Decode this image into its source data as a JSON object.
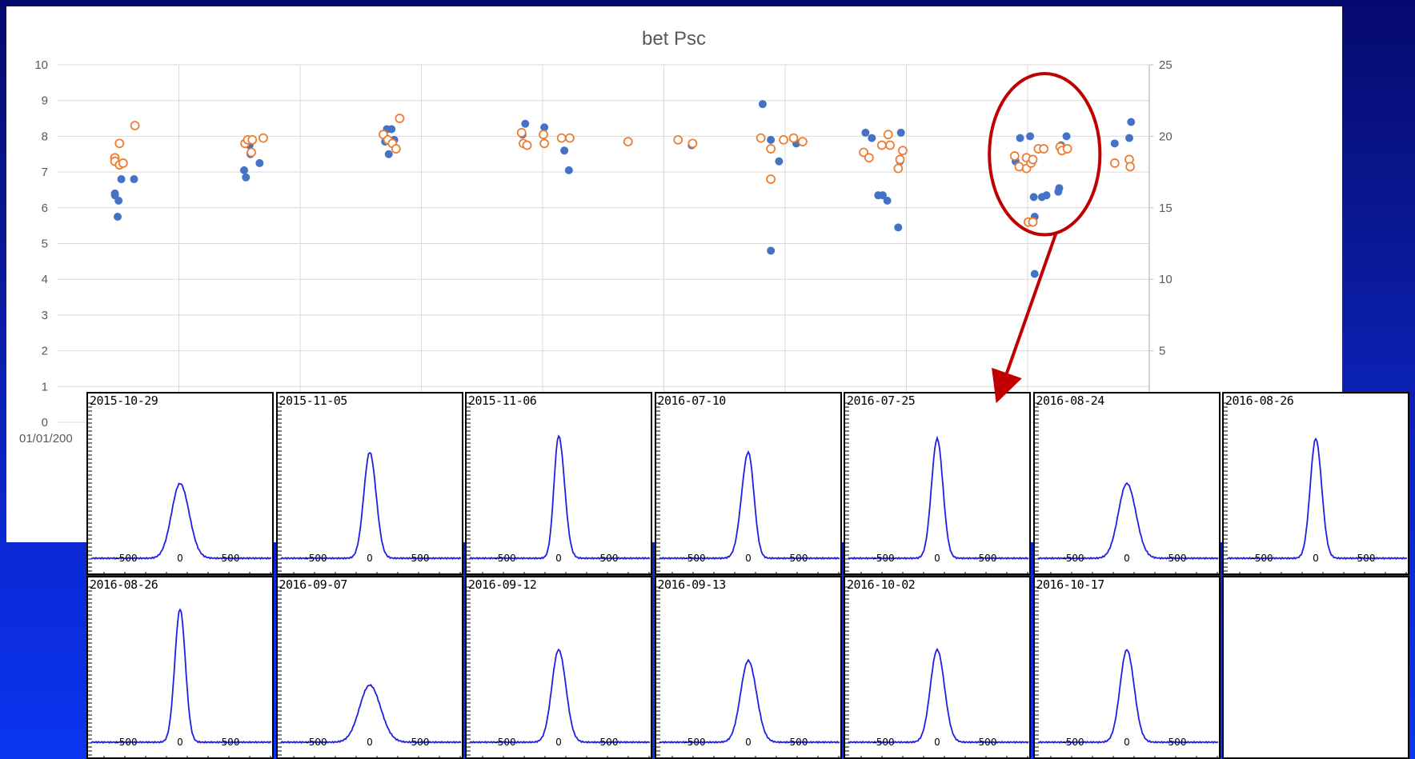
{
  "chart_data": [
    {
      "type": "scatter",
      "title": "bet Psc",
      "y_left": {
        "ticks": [
          "0",
          "1",
          "2",
          "3",
          "4",
          "5",
          "6",
          "7",
          "8",
          "9",
          "10"
        ],
        "ylim": [
          0,
          10
        ]
      },
      "y_right": {
        "ticks": [
          "5",
          "10",
          "15",
          "20",
          "25"
        ],
        "ylim": [
          0,
          25
        ]
      },
      "x_first_tick_label": "01/01/200",
      "grid": true,
      "series": [
        {
          "color": "#4472c4",
          "marker": "filled-circle",
          "axis": "left",
          "points": [
            [
              0.63,
              6.4
            ],
            [
              0.63,
              6.35
            ],
            [
              0.67,
              6.2
            ],
            [
              0.66,
              5.75
            ],
            [
              0.7,
              6.8
            ],
            [
              0.84,
              6.8
            ],
            [
              2.05,
              7.05
            ],
            [
              2.07,
              6.85
            ],
            [
              2.11,
              7.75
            ],
            [
              2.12,
              7.5
            ],
            [
              2.22,
              7.25
            ],
            [
              3.6,
              7.85
            ],
            [
              3.62,
              8.2
            ],
            [
              3.64,
              7.5
            ],
            [
              3.67,
              8.2
            ],
            [
              3.7,
              7.9
            ],
            [
              5.11,
              8.05
            ],
            [
              5.14,
              8.35
            ],
            [
              5.35,
              8.25
            ],
            [
              5.57,
              7.6
            ],
            [
              5.62,
              7.05
            ],
            [
              6.27,
              7.85
            ],
            [
              6.82,
              7.9
            ],
            [
              6.97,
              7.75
            ],
            [
              7.75,
              8.9
            ],
            [
              7.84,
              7.9
            ],
            [
              7.84,
              4.8
            ],
            [
              7.93,
              7.3
            ],
            [
              8.12,
              7.8
            ],
            [
              8.88,
              8.1
            ],
            [
              8.95,
              7.95
            ],
            [
              9.02,
              6.35
            ],
            [
              9.07,
              6.35
            ],
            [
              9.12,
              6.2
            ],
            [
              9.26,
              7.3
            ],
            [
              9.24,
              5.45
            ],
            [
              9.27,
              8.1
            ],
            [
              10.53,
              7.3
            ],
            [
              10.58,
              7.95
            ],
            [
              10.68,
              5.6
            ],
            [
              10.69,
              8.0
            ],
            [
              10.73,
              6.3
            ],
            [
              10.74,
              5.75
            ],
            [
              10.74,
              4.15
            ],
            [
              10.82,
              6.3
            ],
            [
              10.87,
              6.35
            ],
            [
              11.0,
              6.45
            ],
            [
              11.01,
              6.55
            ],
            [
              11.03,
              7.75
            ],
            [
              11.09,
              8.0
            ],
            [
              11.62,
              7.8
            ],
            [
              11.78,
              7.95
            ],
            [
              11.8,
              8.4
            ]
          ]
        },
        {
          "color": "#ed7d31",
          "marker": "open-circle",
          "axis": "left",
          "points": [
            [
              0.63,
              7.4
            ],
            [
              0.63,
              7.3
            ],
            [
              0.68,
              7.2
            ],
            [
              0.72,
              7.25
            ],
            [
              0.68,
              7.8
            ],
            [
              0.85,
              8.3
            ],
            [
              2.06,
              7.8
            ],
            [
              2.09,
              7.9
            ],
            [
              2.14,
              7.9
            ],
            [
              2.13,
              7.55
            ],
            [
              2.26,
              7.95
            ],
            [
              3.58,
              8.05
            ],
            [
              3.63,
              7.9
            ],
            [
              3.68,
              7.8
            ],
            [
              3.72,
              7.65
            ],
            [
              3.76,
              8.5
            ],
            [
              5.1,
              8.1
            ],
            [
              5.12,
              7.8
            ],
            [
              5.16,
              7.75
            ],
            [
              5.34,
              8.05
            ],
            [
              5.35,
              7.8
            ],
            [
              5.54,
              7.95
            ],
            [
              5.63,
              7.95
            ],
            [
              6.27,
              7.85
            ],
            [
              6.82,
              7.9
            ],
            [
              6.98,
              7.8
            ],
            [
              7.73,
              7.95
            ],
            [
              7.84,
              7.65
            ],
            [
              7.84,
              6.8
            ],
            [
              7.98,
              7.9
            ],
            [
              8.09,
              7.95
            ],
            [
              8.19,
              7.85
            ],
            [
              8.86,
              7.55
            ],
            [
              8.92,
              7.4
            ],
            [
              9.06,
              7.75
            ],
            [
              9.15,
              7.75
            ],
            [
              9.13,
              8.05
            ],
            [
              9.24,
              7.1
            ],
            [
              9.26,
              7.35
            ],
            [
              9.29,
              7.6
            ],
            [
              10.52,
              7.45
            ],
            [
              10.57,
              7.15
            ],
            [
              10.65,
              7.1
            ],
            [
              10.65,
              7.4
            ],
            [
              10.7,
              7.25
            ],
            [
              10.72,
              7.35
            ],
            [
              10.67,
              5.6
            ],
            [
              10.72,
              5.6
            ],
            [
              10.78,
              7.65
            ],
            [
              10.84,
              7.65
            ],
            [
              11.02,
              7.7
            ],
            [
              11.04,
              7.6
            ],
            [
              11.1,
              7.65
            ],
            [
              11.62,
              7.25
            ],
            [
              11.78,
              7.35
            ],
            [
              11.79,
              7.15
            ]
          ]
        }
      ],
      "highlight": {
        "shape": "ellipse",
        "color": "#c00000",
        "center": [
          10.85,
          7.5
        ],
        "rx_units": 0.95,
        "ry_units": 2.75
      }
    }
  ],
  "insets": [
    {
      "date": "2015-10-29",
      "peak": 0.55,
      "width": 1.0,
      "asym": 0.1
    },
    {
      "date": "2015-11-05",
      "peak": 0.78,
      "width": 0.7,
      "asym": 0.1
    },
    {
      "date": "2015-11-06",
      "peak": 0.9,
      "width": 0.6,
      "asym": 0.4
    },
    {
      "date": "2016-07-10",
      "peak": 0.78,
      "width": 0.7,
      "asym": -0.3
    },
    {
      "date": "2016-07-25",
      "peak": 0.88,
      "width": 0.65,
      "asym": 0.0
    },
    {
      "date": "2016-08-24",
      "peak": 0.55,
      "width": 1.0,
      "asym": 0.1
    },
    {
      "date": "2016-08-26",
      "peak": 0.88,
      "width": 0.65,
      "asym": 0.1
    },
    {
      "date": "2016-08-26",
      "peak": 0.98,
      "width": 0.6,
      "asym": 0.0
    },
    {
      "date": "2016-09-07",
      "peak": 0.42,
      "width": 1.2,
      "asym": 0.1
    },
    {
      "date": "2016-09-12",
      "peak": 0.68,
      "width": 0.8,
      "asym": 0.1
    },
    {
      "date": "2016-09-13",
      "peak": 0.6,
      "width": 0.9,
      "asym": 0.1
    },
    {
      "date": "2016-10-02",
      "peak": 0.68,
      "width": 0.8,
      "asym": 0.1
    },
    {
      "date": "2016-10-17",
      "peak": 0.68,
      "width": 0.8,
      "asym": 0.1
    }
  ],
  "inset_axis_labels": [
    "-500",
    "0",
    "500"
  ],
  "line_color": "#1f1fe6"
}
